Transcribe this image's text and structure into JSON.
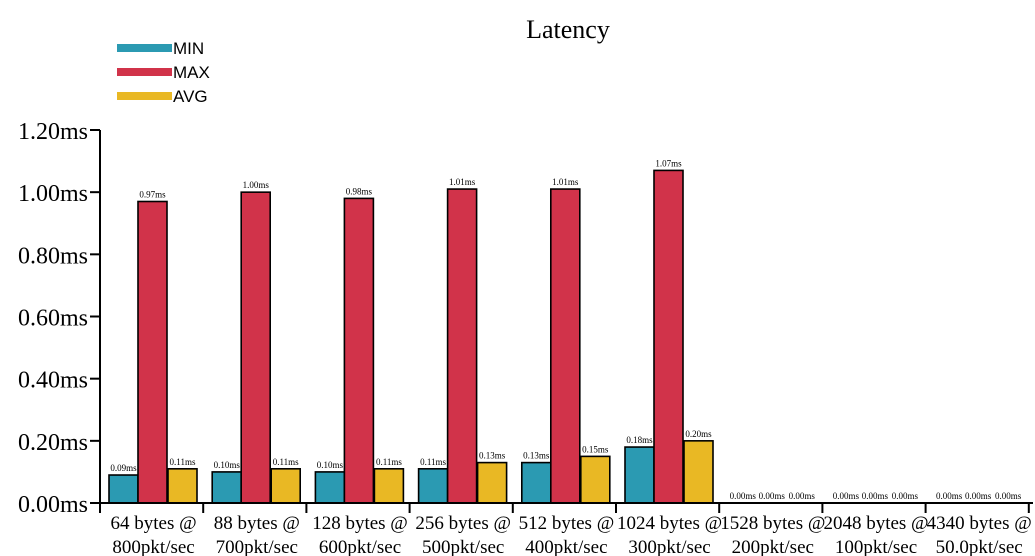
{
  "chart_data": {
    "type": "bar",
    "title": "Latency",
    "legend_position": "top-left",
    "categories": [
      [
        "64 bytes @",
        "800pkt/sec"
      ],
      [
        "88 bytes @",
        "700pkt/sec"
      ],
      [
        "128 bytes @",
        "600pkt/sec"
      ],
      [
        "256 bytes @",
        "500pkt/sec"
      ],
      [
        "512 bytes @",
        "400pkt/sec"
      ],
      [
        "1024 bytes @",
        "300pkt/sec"
      ],
      [
        "1528 bytes @",
        "200pkt/sec"
      ],
      [
        "2048 bytes @",
        "100pkt/sec"
      ],
      [
        "4340 bytes @",
        "50.0pkt/sec"
      ]
    ],
    "series": [
      {
        "name": "MIN",
        "color": "#2b9ab2",
        "values": [
          0.09,
          0.1,
          0.1,
          0.11,
          0.13,
          0.18,
          0.0,
          0.0,
          0.0
        ],
        "labels": [
          "0.09ms",
          "0.10ms",
          "0.10ms",
          "0.11ms",
          "0.13ms",
          "0.18ms",
          "0.00ms",
          "0.00ms",
          "0.00ms"
        ]
      },
      {
        "name": "MAX",
        "color": "#d1334a",
        "values": [
          0.97,
          1.0,
          0.98,
          1.01,
          1.01,
          1.07,
          0.0,
          0.0,
          0.0
        ],
        "labels": [
          "0.97ms",
          "1.00ms",
          "0.98ms",
          "1.01ms",
          "1.01ms",
          "1.07ms",
          "0.00ms",
          "0.00ms",
          "0.00ms"
        ]
      },
      {
        "name": "AVG",
        "color": "#e9b824",
        "values": [
          0.11,
          0.11,
          0.11,
          0.13,
          0.15,
          0.2,
          0.0,
          0.0,
          0.0
        ],
        "labels": [
          "0.11ms",
          "0.11ms",
          "0.11ms",
          "0.13ms",
          "0.15ms",
          "0.20ms",
          "0.00ms",
          "0.00ms",
          "0.00ms"
        ]
      }
    ],
    "yticks": [
      0.0,
      0.2,
      0.4,
      0.6,
      0.8,
      1.0,
      1.2
    ],
    "ytick_labels": [
      "0.00ms",
      "0.20ms",
      "0.40ms",
      "0.60ms",
      "0.80ms",
      "1.00ms",
      "1.20ms"
    ],
    "ylim": [
      0,
      1.2
    ],
    "grid": false
  }
}
